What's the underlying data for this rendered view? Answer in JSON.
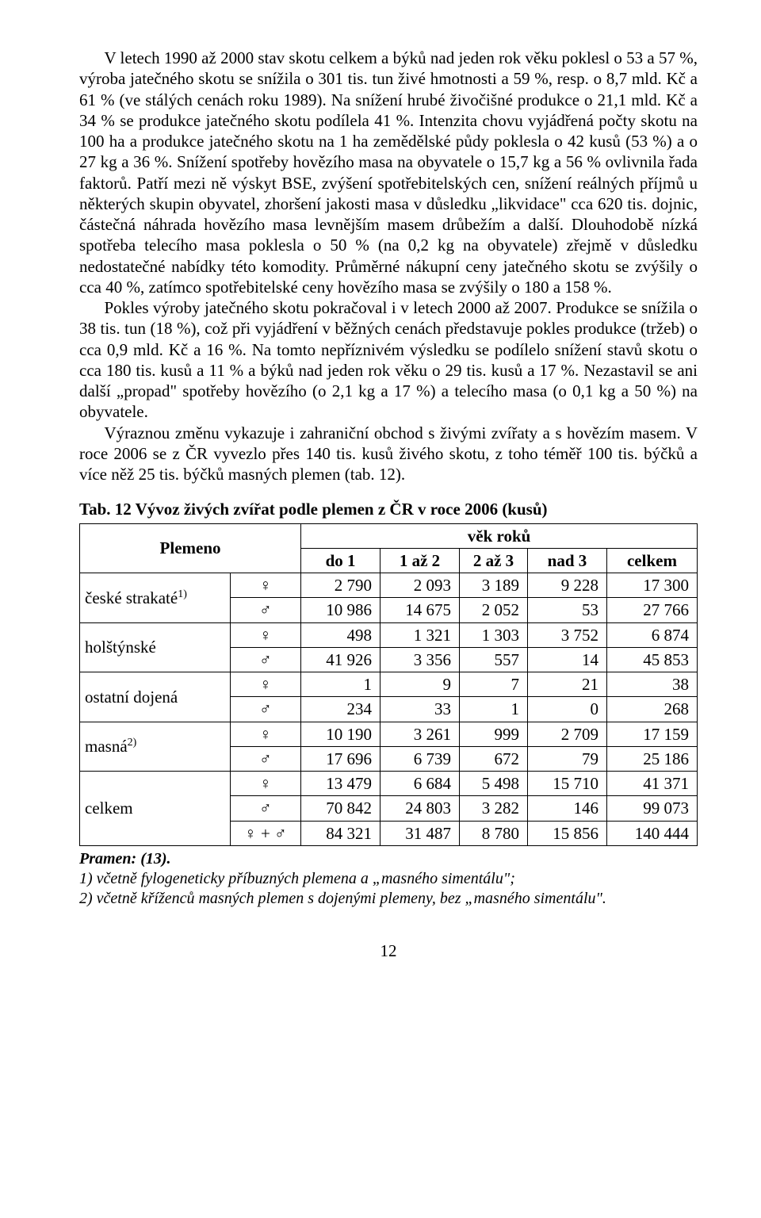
{
  "paragraphs": {
    "p1": "V letech 1990 až 2000 stav skotu celkem a býků nad jeden rok věku poklesl o 53 a 57 %, výroba jatečného skotu se snížila o 301 tis. tun živé hmotnosti a 59 %, resp. o 8,7 mld. Kč a 61 % (ve stálých cenách roku 1989). Na snížení hrubé živočišné produkce o 21,1 mld. Kč a 34 % se produkce jatečného skotu podílela 41 %. Intenzita chovu vyjádřená počty skotu na 100 ha a produkce jatečného skotu na 1 ha zemědělské půdy poklesla o 42 kusů (53 %) a o 27 kg a 36 %. Snížení spotřeby hovězího masa na obyvatele o 15,7 kg a 56 % ovlivnila řada faktorů. Patří mezi ně výskyt BSE, zvýšení spotřebitelských cen, snížení reálných příjmů u některých skupin obyvatel, zhoršení jakosti masa v důsledku „likvidace\" cca 620 tis. dojnic, částečná náhrada hovězího masa levnějším masem drůbežím a další. Dlouhodobě nízká spotřeba telecího masa poklesla o 50 % (na 0,2 kg na obyvatele) zřejmě v důsledku nedostatečné nabídky této komodity. Průměrné nákupní ceny jatečného skotu se zvýšily o cca 40 %, zatímco spotřebitelské ceny hovězího masa se zvýšily o 180 a 158 %.",
    "p2": "Pokles výroby jatečného skotu pokračoval i v letech 2000 až 2007. Produkce se snížila o 38 tis. tun (18 %), což při vyjádření v běžných cenách představuje pokles produkce (tržeb) o cca 0,9 mld. Kč a 16 %. Na tomto nepříznivém výsledku se podílelo snížení stavů skotu o cca 180 tis. kusů a 11 % a býků nad jeden rok věku o 29 tis. kusů a 17 %. Nezastavil se ani další „propad\" spotřeby hovězího (o 2,1 kg a 17 %) a telecího masa (o 0,1 kg a 50 %) na obyvatele.",
    "p3": "Výraznou změnu vykazuje i zahraniční obchod s živými zvířaty a s hovězím masem. V roce 2006 se z ČR vyvezlo přes 140 tis. kusů živého skotu, z toho téměř 100 tis. býčků a více něž 25 tis. býčků masných plemen (tab. 12)."
  },
  "table": {
    "title": "Tab. 12  Vývoz živých zvířat podle plemen z ČR v roce 2006 (kusů)",
    "header": {
      "plemeno": "Plemeno",
      "vek": "věk roků",
      "cols": [
        "do 1",
        "1 až 2",
        "2 až 3",
        "nad 3",
        "celkem"
      ]
    },
    "symbols": {
      "f": "♀",
      "m": "♂",
      "fm": "♀ + ♂"
    },
    "rows": [
      {
        "label": "české strakaté",
        "sup": "1)",
        "f": [
          "2 790",
          "2 093",
          "3 189",
          "9 228",
          "17 300"
        ],
        "m": [
          "10 986",
          "14 675",
          "2 052",
          "53",
          "27 766"
        ]
      },
      {
        "label": "holštýnské",
        "sup": "",
        "f": [
          "498",
          "1 321",
          "1 303",
          "3 752",
          "6 874"
        ],
        "m": [
          "41 926",
          "3 356",
          "557",
          "14",
          "45 853"
        ]
      },
      {
        "label": "ostatní dojená",
        "sup": "",
        "f": [
          "1",
          "9",
          "7",
          "21",
          "38"
        ],
        "m": [
          "234",
          "33",
          "1",
          "0",
          "268"
        ]
      },
      {
        "label": "masná",
        "sup": "2)",
        "f": [
          "10 190",
          "3 261",
          "999",
          "2 709",
          "17 159"
        ],
        "m": [
          "17 696",
          "6 739",
          "672",
          "79",
          "25 186"
        ]
      }
    ],
    "total": {
      "label": "celkem",
      "f": [
        "13 479",
        "6 684",
        "5 498",
        "15 710",
        "41 371"
      ],
      "m": [
        "70 842",
        "24 803",
        "3 282",
        "146",
        "99 073"
      ],
      "fm": [
        "84 321",
        "31 487",
        "8 780",
        "15 856",
        "140 444"
      ]
    }
  },
  "footnotes": {
    "src": "Pramen: (13).",
    "n1": "1) včetně fylogeneticky příbuzných plemena a „masného simentálu\";",
    "n2": "2) včetně kříženců masných plemen s dojenými plemeny, bez „masného simentálu\"."
  },
  "pagenum": "12"
}
